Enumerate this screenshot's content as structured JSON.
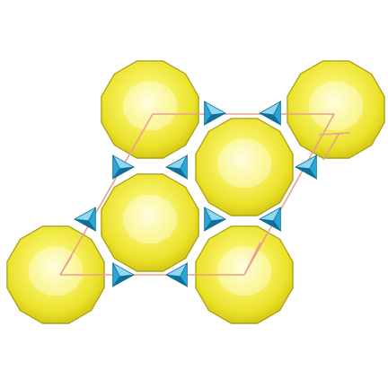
{
  "colors": {
    "background": "#ffffff",
    "polyhedron_fill": "#f2ee3c",
    "polyhedron_highlight": "#fffde0",
    "polyhedron_shadow": "#cdbf10",
    "polyhedron_edge": "#a89a10",
    "tetrahedron_fill": "#2aa6d6",
    "tetrahedron_light": "#8fd8f2",
    "tetrahedron_dark": "#0f6f98",
    "unit_cell_line": "#e8a090"
  },
  "icons": {
    "polyhedron": "dodecagonal-cluster-icon",
    "tetrahedron": "tetrahedron-icon"
  },
  "structure": {
    "cluster_count": 6,
    "tetrahedron_count": 10,
    "unit_cell": "hexagonal"
  }
}
